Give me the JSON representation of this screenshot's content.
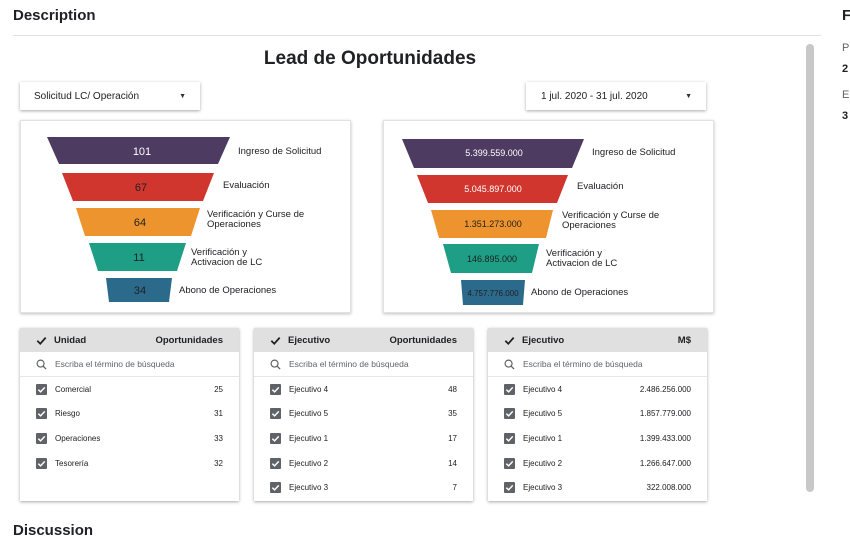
{
  "page": {
    "description_heading": "Description",
    "discussion_heading": "Discussion",
    "right_column": [
      "F",
      "P",
      "2",
      "E",
      "3"
    ]
  },
  "dashboard": {
    "title": "Lead de Oportunidades",
    "filter_dropdown": {
      "value": "Solicitud LC/ Operación"
    },
    "date_dropdown": {
      "value": "1 jul. 2020 - 31 jul. 2020"
    },
    "colors": {
      "stage1": "#4e3b62",
      "stage2": "#d0362e",
      "stage3": "#ee942e",
      "stage4": "#1e9e84",
      "stage5": "#2c6a8c"
    },
    "funnel_left": {
      "stages": [
        {
          "value": "101",
          "label": "Ingreso de Solicitud"
        },
        {
          "value": "67",
          "label": "Evaluación"
        },
        {
          "value": "64",
          "label": "Verificación y Curse de Operaciones"
        },
        {
          "value": "11",
          "label": "Verificación y Activacion de LC"
        },
        {
          "value": "34",
          "label": "Abono de Operaciones"
        }
      ]
    },
    "funnel_right": {
      "stages": [
        {
          "value": "5.399.559.000",
          "label": "Ingreso de Solicitud"
        },
        {
          "value": "5.045.897.000",
          "label": "Evaluación"
        },
        {
          "value": "1.351.273.000",
          "label": "Verificación y Curse de Operaciones"
        },
        {
          "value": "146.895.000",
          "label": "Verificación y Activacion de LC"
        },
        {
          "value": "4.757.776.000",
          "label": "Abono de Operaciones"
        }
      ]
    },
    "table_unidad": {
      "col1": "Unidad",
      "col2": "Oportunidades",
      "search_placeholder": "Escriba el término de búsqueda",
      "rows": [
        {
          "name": "Comercial",
          "value": "25"
        },
        {
          "name": "Riesgo",
          "value": "31"
        },
        {
          "name": "Operaciones",
          "value": "33"
        },
        {
          "name": "Tesorería",
          "value": "32"
        }
      ]
    },
    "table_ejecutivo": {
      "col1": "Ejecutivo",
      "col2": "Oportunidades",
      "search_placeholder": "Escriba el término de búsqueda",
      "rows": [
        {
          "name": "Ejecutivo 4",
          "value": "48"
        },
        {
          "name": "Ejecutivo 5",
          "value": "35"
        },
        {
          "name": "Ejecutivo 1",
          "value": "17"
        },
        {
          "name": "Ejecutivo 2",
          "value": "14"
        },
        {
          "name": "Ejecutivo 3",
          "value": "7"
        }
      ]
    },
    "table_ms": {
      "col1": "Ejecutivo",
      "col2": "M$",
      "search_placeholder": "Escriba el término de búsqueda",
      "rows": [
        {
          "name": "Ejecutivo 4",
          "value": "2.486.256.000"
        },
        {
          "name": "Ejecutivo 5",
          "value": "1.857.779.000"
        },
        {
          "name": "Ejecutivo 1",
          "value": "1.399.433.000"
        },
        {
          "name": "Ejecutivo 2",
          "value": "1.266.647.000"
        },
        {
          "name": "Ejecutivo 3",
          "value": "322.008.000"
        }
      ]
    }
  }
}
